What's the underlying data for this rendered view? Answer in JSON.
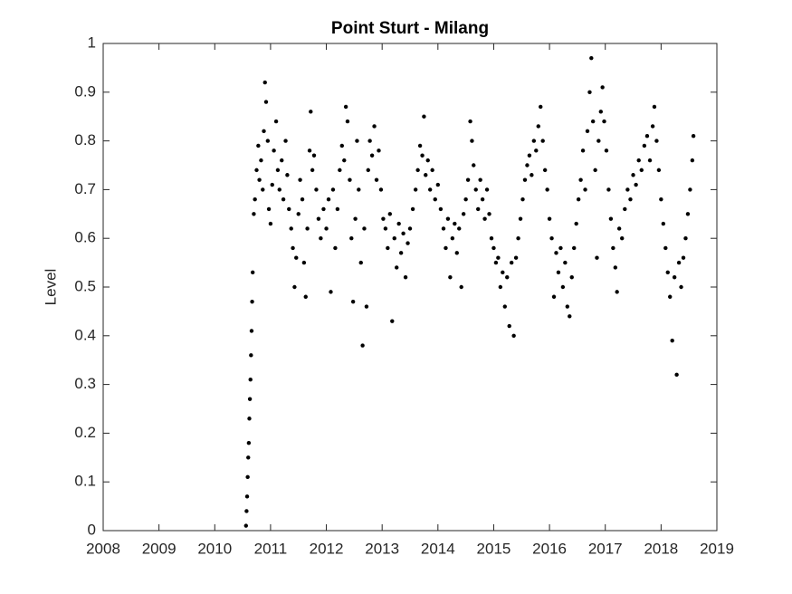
{
  "chart_data": {
    "type": "scatter",
    "title": "Point Sturt - Milang",
    "y_label": "Level",
    "xlim": [
      2008,
      2019
    ],
    "xticks": [
      2008,
      2009,
      2010,
      2011,
      2012,
      2013,
      2014,
      2015,
      2016,
      2017,
      2018,
      2019
    ],
    "ylim": [
      0,
      1
    ],
    "yticks": [
      0,
      0.1,
      0.2,
      0.3,
      0.4,
      0.5,
      0.6,
      0.7,
      0.8,
      0.9,
      1
    ],
    "color": "#000000",
    "x": [
      2010.56,
      2010.57,
      2010.58,
      2010.59,
      2010.6,
      2010.61,
      2010.62,
      2010.63,
      2010.64,
      2010.65,
      2010.66,
      2010.67,
      2010.68,
      2010.7,
      2010.72,
      2010.75,
      2010.78,
      2010.8,
      2010.83,
      2010.86,
      2010.88,
      2010.9,
      2010.92,
      2010.95,
      2010.97,
      2011.0,
      2011.03,
      2011.06,
      2011.1,
      2011.13,
      2011.16,
      2011.2,
      2011.23,
      2011.27,
      2011.3,
      2011.33,
      2011.37,
      2011.4,
      2011.43,
      2011.46,
      2011.5,
      2011.53,
      2011.57,
      2011.6,
      2011.63,
      2011.66,
      2011.7,
      2011.72,
      2011.75,
      2011.78,
      2011.82,
      2011.86,
      2011.9,
      2011.95,
      2012.0,
      2012.04,
      2012.08,
      2012.12,
      2012.16,
      2012.2,
      2012.24,
      2012.28,
      2012.32,
      2012.35,
      2012.38,
      2012.42,
      2012.45,
      2012.48,
      2012.52,
      2012.55,
      2012.58,
      2012.62,
      2012.65,
      2012.68,
      2012.72,
      2012.75,
      2012.78,
      2012.82,
      2012.86,
      2012.9,
      2012.94,
      2012.98,
      2013.02,
      2013.06,
      2013.1,
      2013.14,
      2013.18,
      2013.22,
      2013.26,
      2013.3,
      2013.34,
      2013.38,
      2013.42,
      2013.46,
      2013.5,
      2013.55,
      2013.6,
      2013.64,
      2013.68,
      2013.72,
      2013.75,
      2013.78,
      2013.82,
      2013.86,
      2013.9,
      2013.95,
      2014.0,
      2014.05,
      2014.1,
      2014.14,
      2014.18,
      2014.22,
      2014.26,
      2014.3,
      2014.34,
      2014.38,
      2014.42,
      2014.46,
      2014.5,
      2014.54,
      2014.58,
      2014.61,
      2014.64,
      2014.68,
      2014.72,
      2014.76,
      2014.8,
      2014.84,
      2014.88,
      2014.92,
      2014.96,
      2015.0,
      2015.04,
      2015.08,
      2015.12,
      2015.16,
      2015.2,
      2015.24,
      2015.28,
      2015.32,
      2015.36,
      2015.4,
      2015.44,
      2015.48,
      2015.52,
      2015.56,
      2015.6,
      2015.64,
      2015.68,
      2015.72,
      2015.76,
      2015.8,
      2015.84,
      2015.88,
      2015.92,
      2015.96,
      2016.0,
      2016.04,
      2016.08,
      2016.12,
      2016.16,
      2016.2,
      2016.24,
      2016.28,
      2016.32,
      2016.36,
      2016.4,
      2016.44,
      2016.48,
      2016.52,
      2016.56,
      2016.6,
      2016.64,
      2016.68,
      2016.72,
      2016.75,
      2016.78,
      2016.82,
      2016.85,
      2016.88,
      2016.92,
      2016.95,
      2016.98,
      2017.02,
      2017.06,
      2017.1,
      2017.14,
      2017.18,
      2017.21,
      2017.25,
      2017.3,
      2017.35,
      2017.4,
      2017.45,
      2017.5,
      2017.55,
      2017.6,
      2017.65,
      2017.7,
      2017.75,
      2017.8,
      2017.85,
      2017.88,
      2017.92,
      2017.96,
      2018.0,
      2018.04,
      2018.08,
      2018.12,
      2018.16,
      2018.2,
      2018.24,
      2018.28,
      2018.32,
      2018.36,
      2018.4,
      2018.44,
      2018.48,
      2018.52,
      2018.56,
      2018.58
    ],
    "values": [
      0.01,
      0.04,
      0.07,
      0.11,
      0.15,
      0.18,
      0.23,
      0.27,
      0.31,
      0.36,
      0.41,
      0.47,
      0.53,
      0.65,
      0.68,
      0.74,
      0.79,
      0.72,
      0.76,
      0.7,
      0.82,
      0.92,
      0.88,
      0.8,
      0.66,
      0.63,
      0.71,
      0.78,
      0.84,
      0.74,
      0.7,
      0.76,
      0.68,
      0.8,
      0.73,
      0.66,
      0.62,
      0.58,
      0.5,
      0.56,
      0.65,
      0.72,
      0.68,
      0.55,
      0.48,
      0.62,
      0.78,
      0.86,
      0.74,
      0.77,
      0.7,
      0.64,
      0.6,
      0.66,
      0.62,
      0.68,
      0.49,
      0.7,
      0.58,
      0.66,
      0.74,
      0.79,
      0.76,
      0.87,
      0.84,
      0.72,
      0.6,
      0.47,
      0.64,
      0.8,
      0.7,
      0.55,
      0.38,
      0.62,
      0.46,
      0.74,
      0.8,
      0.77,
      0.83,
      0.72,
      0.78,
      0.7,
      0.64,
      0.62,
      0.58,
      0.65,
      0.43,
      0.6,
      0.54,
      0.63,
      0.57,
      0.61,
      0.52,
      0.59,
      0.62,
      0.66,
      0.7,
      0.74,
      0.79,
      0.77,
      0.85,
      0.73,
      0.76,
      0.7,
      0.74,
      0.68,
      0.71,
      0.66,
      0.62,
      0.58,
      0.64,
      0.52,
      0.6,
      0.63,
      0.57,
      0.62,
      0.5,
      0.65,
      0.68,
      0.72,
      0.84,
      0.8,
      0.75,
      0.7,
      0.66,
      0.72,
      0.68,
      0.64,
      0.7,
      0.65,
      0.6,
      0.58,
      0.55,
      0.56,
      0.5,
      0.53,
      0.46,
      0.52,
      0.42,
      0.55,
      0.4,
      0.56,
      0.6,
      0.64,
      0.68,
      0.72,
      0.75,
      0.77,
      0.73,
      0.8,
      0.78,
      0.83,
      0.87,
      0.8,
      0.74,
      0.7,
      0.64,
      0.6,
      0.48,
      0.57,
      0.53,
      0.58,
      0.5,
      0.55,
      0.46,
      0.44,
      0.52,
      0.58,
      0.63,
      0.68,
      0.72,
      0.78,
      0.7,
      0.82,
      0.9,
      0.97,
      0.84,
      0.74,
      0.56,
      0.8,
      0.86,
      0.91,
      0.84,
      0.78,
      0.7,
      0.64,
      0.58,
      0.54,
      0.49,
      0.62,
      0.6,
      0.66,
      0.7,
      0.68,
      0.73,
      0.71,
      0.76,
      0.74,
      0.79,
      0.81,
      0.76,
      0.83,
      0.87,
      0.8,
      0.74,
      0.68,
      0.63,
      0.58,
      0.53,
      0.48,
      0.39,
      0.52,
      0.32,
      0.55,
      0.5,
      0.56,
      0.6,
      0.65,
      0.7,
      0.76,
      0.81
    ]
  }
}
